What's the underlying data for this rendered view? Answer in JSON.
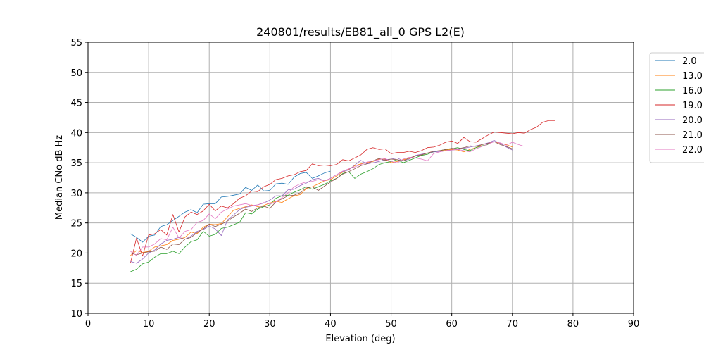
{
  "chart_data": {
    "type": "line",
    "title": "240801/results/EB81_all_0 GPS L2(E)",
    "xlabel": "Elevation (deg)",
    "ylabel": "Median CNo dB Hz",
    "xlim": [
      0,
      90
    ],
    "ylim": [
      10,
      55
    ],
    "xticks": [
      0,
      10,
      20,
      30,
      40,
      50,
      60,
      70,
      80,
      90
    ],
    "yticks": [
      10,
      15,
      20,
      25,
      30,
      35,
      40,
      45,
      50,
      55
    ],
    "grid": true,
    "legend_position": "outside-right-top",
    "series": [
      {
        "name": "2.0",
        "color": "#1f77b4",
        "x": [
          7,
          8,
          9,
          10,
          11,
          12,
          13,
          14,
          15,
          16,
          17,
          18,
          19,
          20,
          21,
          22,
          23,
          24,
          25,
          26,
          27,
          28,
          29,
          30,
          31,
          32,
          33,
          34,
          35,
          36,
          37,
          38,
          39,
          40
        ],
        "y": [
          23.2,
          22.6,
          21.8,
          22.8,
          23.0,
          24.4,
          24.7,
          25.4,
          26.1,
          26.8,
          27.2,
          26.7,
          28.1,
          28.2,
          28.2,
          29.3,
          29.4,
          29.6,
          29.8,
          30.9,
          30.4,
          31.3,
          30.3,
          30.4,
          31.5,
          31.6,
          31.4,
          32.6,
          33.2,
          33.4,
          32.4,
          32.8,
          33.3,
          33.6
        ]
      },
      {
        "name": "13.0",
        "color": "#ff7f0e",
        "x": [
          7,
          8,
          9,
          10,
          11,
          12,
          13,
          14,
          15,
          16,
          17,
          18,
          19,
          20,
          21,
          22,
          23,
          24,
          25,
          26,
          27,
          28,
          29,
          30,
          31,
          32,
          33,
          34,
          35,
          36,
          37,
          38,
          39,
          40,
          41,
          42,
          43,
          44,
          45,
          46,
          47,
          48,
          49,
          50,
          51,
          52,
          53,
          54,
          55,
          56,
          57,
          58,
          59,
          60,
          61,
          62,
          63,
          64,
          65,
          66,
          67,
          68,
          69,
          70
        ],
        "y": [
          19.6,
          20.4,
          20.1,
          20.3,
          21.0,
          21.2,
          21.4,
          22.1,
          22.3,
          22.6,
          23.5,
          23.2,
          24.3,
          24.8,
          24.7,
          24.9,
          26.0,
          27.1,
          27.4,
          27.7,
          28.0,
          27.7,
          27.9,
          28.3,
          28.6,
          28.4,
          29.0,
          29.5,
          29.7,
          30.7,
          31.0,
          31.5,
          32.0,
          32.2,
          32.8,
          33.4,
          33.9,
          34.5,
          34.8,
          35.0,
          35.2,
          35.6,
          35.6,
          35.0,
          35.2,
          35.5,
          35.7,
          36.1,
          36.3,
          36.6,
          36.9,
          37.0,
          37.1,
          37.2,
          37.1,
          36.8,
          37.2,
          37.5,
          38.0,
          38.2,
          38.5,
          38.2,
          38.0,
          37.6
        ]
      },
      {
        "name": "16.0",
        "color": "#2ca02c",
        "x": [
          7,
          8,
          9,
          10,
          11,
          12,
          13,
          14,
          15,
          16,
          17,
          18,
          19,
          20,
          21,
          22,
          23,
          24,
          25,
          26,
          27,
          28,
          29,
          30,
          31,
          32,
          33,
          34,
          35,
          36,
          37,
          38,
          39,
          40,
          41,
          42,
          43,
          44,
          45,
          46,
          47,
          48,
          49,
          50,
          51,
          52,
          53,
          54,
          55,
          56,
          57,
          58,
          59,
          60,
          61,
          62,
          63,
          64,
          65,
          66
        ],
        "y": [
          16.9,
          17.3,
          18.2,
          18.5,
          19.3,
          19.9,
          19.9,
          20.3,
          19.9,
          21.0,
          21.9,
          22.2,
          23.6,
          22.8,
          23.1,
          24.1,
          24.3,
          24.7,
          25.1,
          26.7,
          26.5,
          27.3,
          27.7,
          28.0,
          29.1,
          29.5,
          29.6,
          30.1,
          30.5,
          31.0,
          30.6,
          31.0,
          31.4,
          32.0,
          32.4,
          33.2,
          33.5,
          32.4,
          33.1,
          33.5,
          34.0,
          34.7,
          35.0,
          35.2,
          35.5,
          35.0,
          35.4,
          35.8,
          36.2,
          36.4,
          36.8,
          37.0,
          37.2,
          37.3,
          37.5,
          37.2,
          37.0,
          37.5,
          37.8,
          38.0
        ]
      },
      {
        "name": "19.0",
        "color": "#d62728",
        "x": [
          7,
          8,
          9,
          10,
          11,
          12,
          13,
          14,
          15,
          16,
          17,
          18,
          19,
          20,
          21,
          22,
          23,
          24,
          25,
          26,
          27,
          28,
          29,
          30,
          31,
          32,
          33,
          34,
          35,
          36,
          37,
          38,
          39,
          40,
          41,
          42,
          43,
          44,
          45,
          46,
          47,
          48,
          49,
          50,
          51,
          52,
          53,
          54,
          55,
          56,
          57,
          58,
          59,
          60,
          61,
          62,
          63,
          64,
          65,
          66,
          67,
          68,
          69,
          70,
          71,
          72,
          73,
          74,
          75,
          76,
          77
        ],
        "y": [
          18.3,
          22.5,
          19.5,
          23.0,
          23.2,
          23.9,
          23.0,
          26.4,
          23.5,
          26.0,
          26.8,
          26.4,
          27.0,
          28.1,
          27.0,
          27.8,
          27.5,
          28.2,
          29.1,
          29.5,
          30.3,
          30.2,
          31.0,
          31.4,
          32.2,
          32.4,
          32.8,
          33.0,
          33.5,
          33.7,
          34.8,
          34.5,
          34.6,
          34.5,
          34.7,
          35.5,
          35.3,
          35.8,
          36.3,
          37.2,
          37.5,
          37.2,
          37.3,
          36.5,
          36.7,
          36.7,
          36.9,
          36.7,
          37.0,
          37.5,
          37.6,
          37.9,
          38.4,
          38.6,
          38.2,
          39.2,
          38.5,
          38.4,
          39.0,
          39.6,
          40.1,
          40.0,
          39.9,
          39.8,
          40.0,
          39.9,
          40.5,
          40.9,
          41.7,
          42.0,
          42.0
        ]
      },
      {
        "name": "20.0",
        "color": "#9467bd",
        "x": [
          7,
          8,
          9,
          10,
          11,
          12,
          13,
          14,
          15,
          16,
          17,
          18,
          19,
          20,
          21,
          22,
          23,
          24,
          25,
          26,
          27,
          28,
          29,
          30,
          31,
          32,
          33,
          34,
          35,
          36,
          37,
          38,
          39,
          40,
          41,
          42,
          43,
          44,
          45,
          46,
          47,
          48,
          49,
          50,
          51,
          52,
          53,
          54,
          55,
          56,
          57,
          58,
          59,
          60,
          61,
          62,
          63,
          64,
          65,
          66,
          67,
          68,
          69,
          70
        ],
        "y": [
          18.6,
          18.3,
          19.0,
          20.0,
          20.5,
          21.5,
          22.1,
          22.3,
          22.6,
          22.3,
          22.8,
          23.6,
          23.9,
          24.5,
          24.0,
          22.9,
          25.5,
          26.3,
          27.2,
          27.6,
          27.8,
          28.0,
          28.3,
          28.8,
          29.5,
          29.5,
          30.5,
          30.6,
          31.2,
          31.6,
          32.2,
          32.4,
          32.0,
          32.4,
          33.0,
          33.5,
          33.8,
          34.6,
          35.4,
          34.8,
          35.0,
          35.2,
          35.5,
          35.6,
          35.8,
          35.3,
          35.6,
          36.2,
          36.4,
          36.6,
          36.8,
          36.8,
          37.0,
          37.1,
          37.2,
          37.4,
          37.6,
          37.8,
          38.0,
          38.3,
          38.7,
          38.2,
          37.6,
          37.1
        ]
      },
      {
        "name": "21.0",
        "color": "#8c564b",
        "x": [
          7,
          8,
          9,
          10,
          11,
          12,
          13,
          14,
          15,
          16,
          17,
          18,
          19,
          20,
          21,
          22,
          23,
          24,
          25,
          26,
          27,
          28,
          29,
          30,
          31,
          32,
          33,
          34,
          35,
          36,
          37,
          38,
          39,
          40,
          41,
          42,
          43,
          44,
          45,
          46,
          47,
          48,
          49,
          50,
          51,
          52,
          53,
          54,
          55,
          56,
          57,
          58,
          59,
          60,
          61,
          62,
          63,
          64,
          65,
          66,
          67,
          68,
          69,
          70
        ],
        "y": [
          20.0,
          19.7,
          20.0,
          20.2,
          20.3,
          21.0,
          20.6,
          21.5,
          21.4,
          22.3,
          22.6,
          23.4,
          24.0,
          24.8,
          24.4,
          24.8,
          25.3,
          26.0,
          26.6,
          27.3,
          26.9,
          27.5,
          27.8,
          27.4,
          28.5,
          29.0,
          29.5,
          29.6,
          30.0,
          30.8,
          31.0,
          30.4,
          31.1,
          31.8,
          32.4,
          33.1,
          33.5,
          34.0,
          34.5,
          34.8,
          35.3,
          35.7,
          35.4,
          35.6,
          35.5,
          35.3,
          35.8,
          36.1,
          36.3,
          36.6,
          36.9,
          37.0,
          37.2,
          37.4,
          37.3,
          37.5,
          37.8,
          37.7,
          38.0,
          38.2,
          38.5,
          38.0,
          37.7,
          37.3
        ]
      },
      {
        "name": "22.0",
        "color": "#e377c2",
        "x": [
          7,
          8,
          9,
          10,
          11,
          12,
          13,
          14,
          15,
          16,
          17,
          18,
          19,
          20,
          21,
          22,
          23,
          24,
          25,
          26,
          27,
          28,
          29,
          30,
          31,
          32,
          33,
          34,
          35,
          36,
          37,
          38,
          39,
          40,
          41,
          42,
          43,
          44,
          45,
          46,
          47,
          48,
          49,
          50,
          51,
          52,
          53,
          54,
          55,
          56,
          57,
          58,
          59,
          60,
          61,
          62,
          63,
          64,
          65,
          66,
          67,
          68,
          69,
          70,
          71,
          72
        ],
        "y": [
          20.3,
          19.6,
          21.0,
          21.0,
          21.5,
          22.4,
          22.2,
          24.3,
          22.5,
          23.6,
          23.9,
          25.1,
          25.4,
          26.5,
          25.7,
          26.8,
          27.3,
          27.8,
          28.0,
          28.2,
          27.9,
          28.0,
          28.4,
          28.1,
          28.5,
          29.2,
          30.0,
          31.0,
          31.5,
          31.8,
          31.9,
          32.2,
          32.0,
          32.4,
          33.0,
          33.6,
          34.0,
          34.3,
          34.7,
          35.1,
          35.3,
          35.5,
          35.7,
          35.2,
          35.0,
          35.6,
          35.9,
          35.8,
          35.6,
          35.3,
          36.5,
          36.8,
          37.0,
          37.1,
          37.2,
          37.0,
          36.8,
          37.3,
          37.7,
          38.1,
          38.5,
          38.3,
          37.9,
          38.4,
          38.0,
          37.7
        ]
      }
    ]
  }
}
